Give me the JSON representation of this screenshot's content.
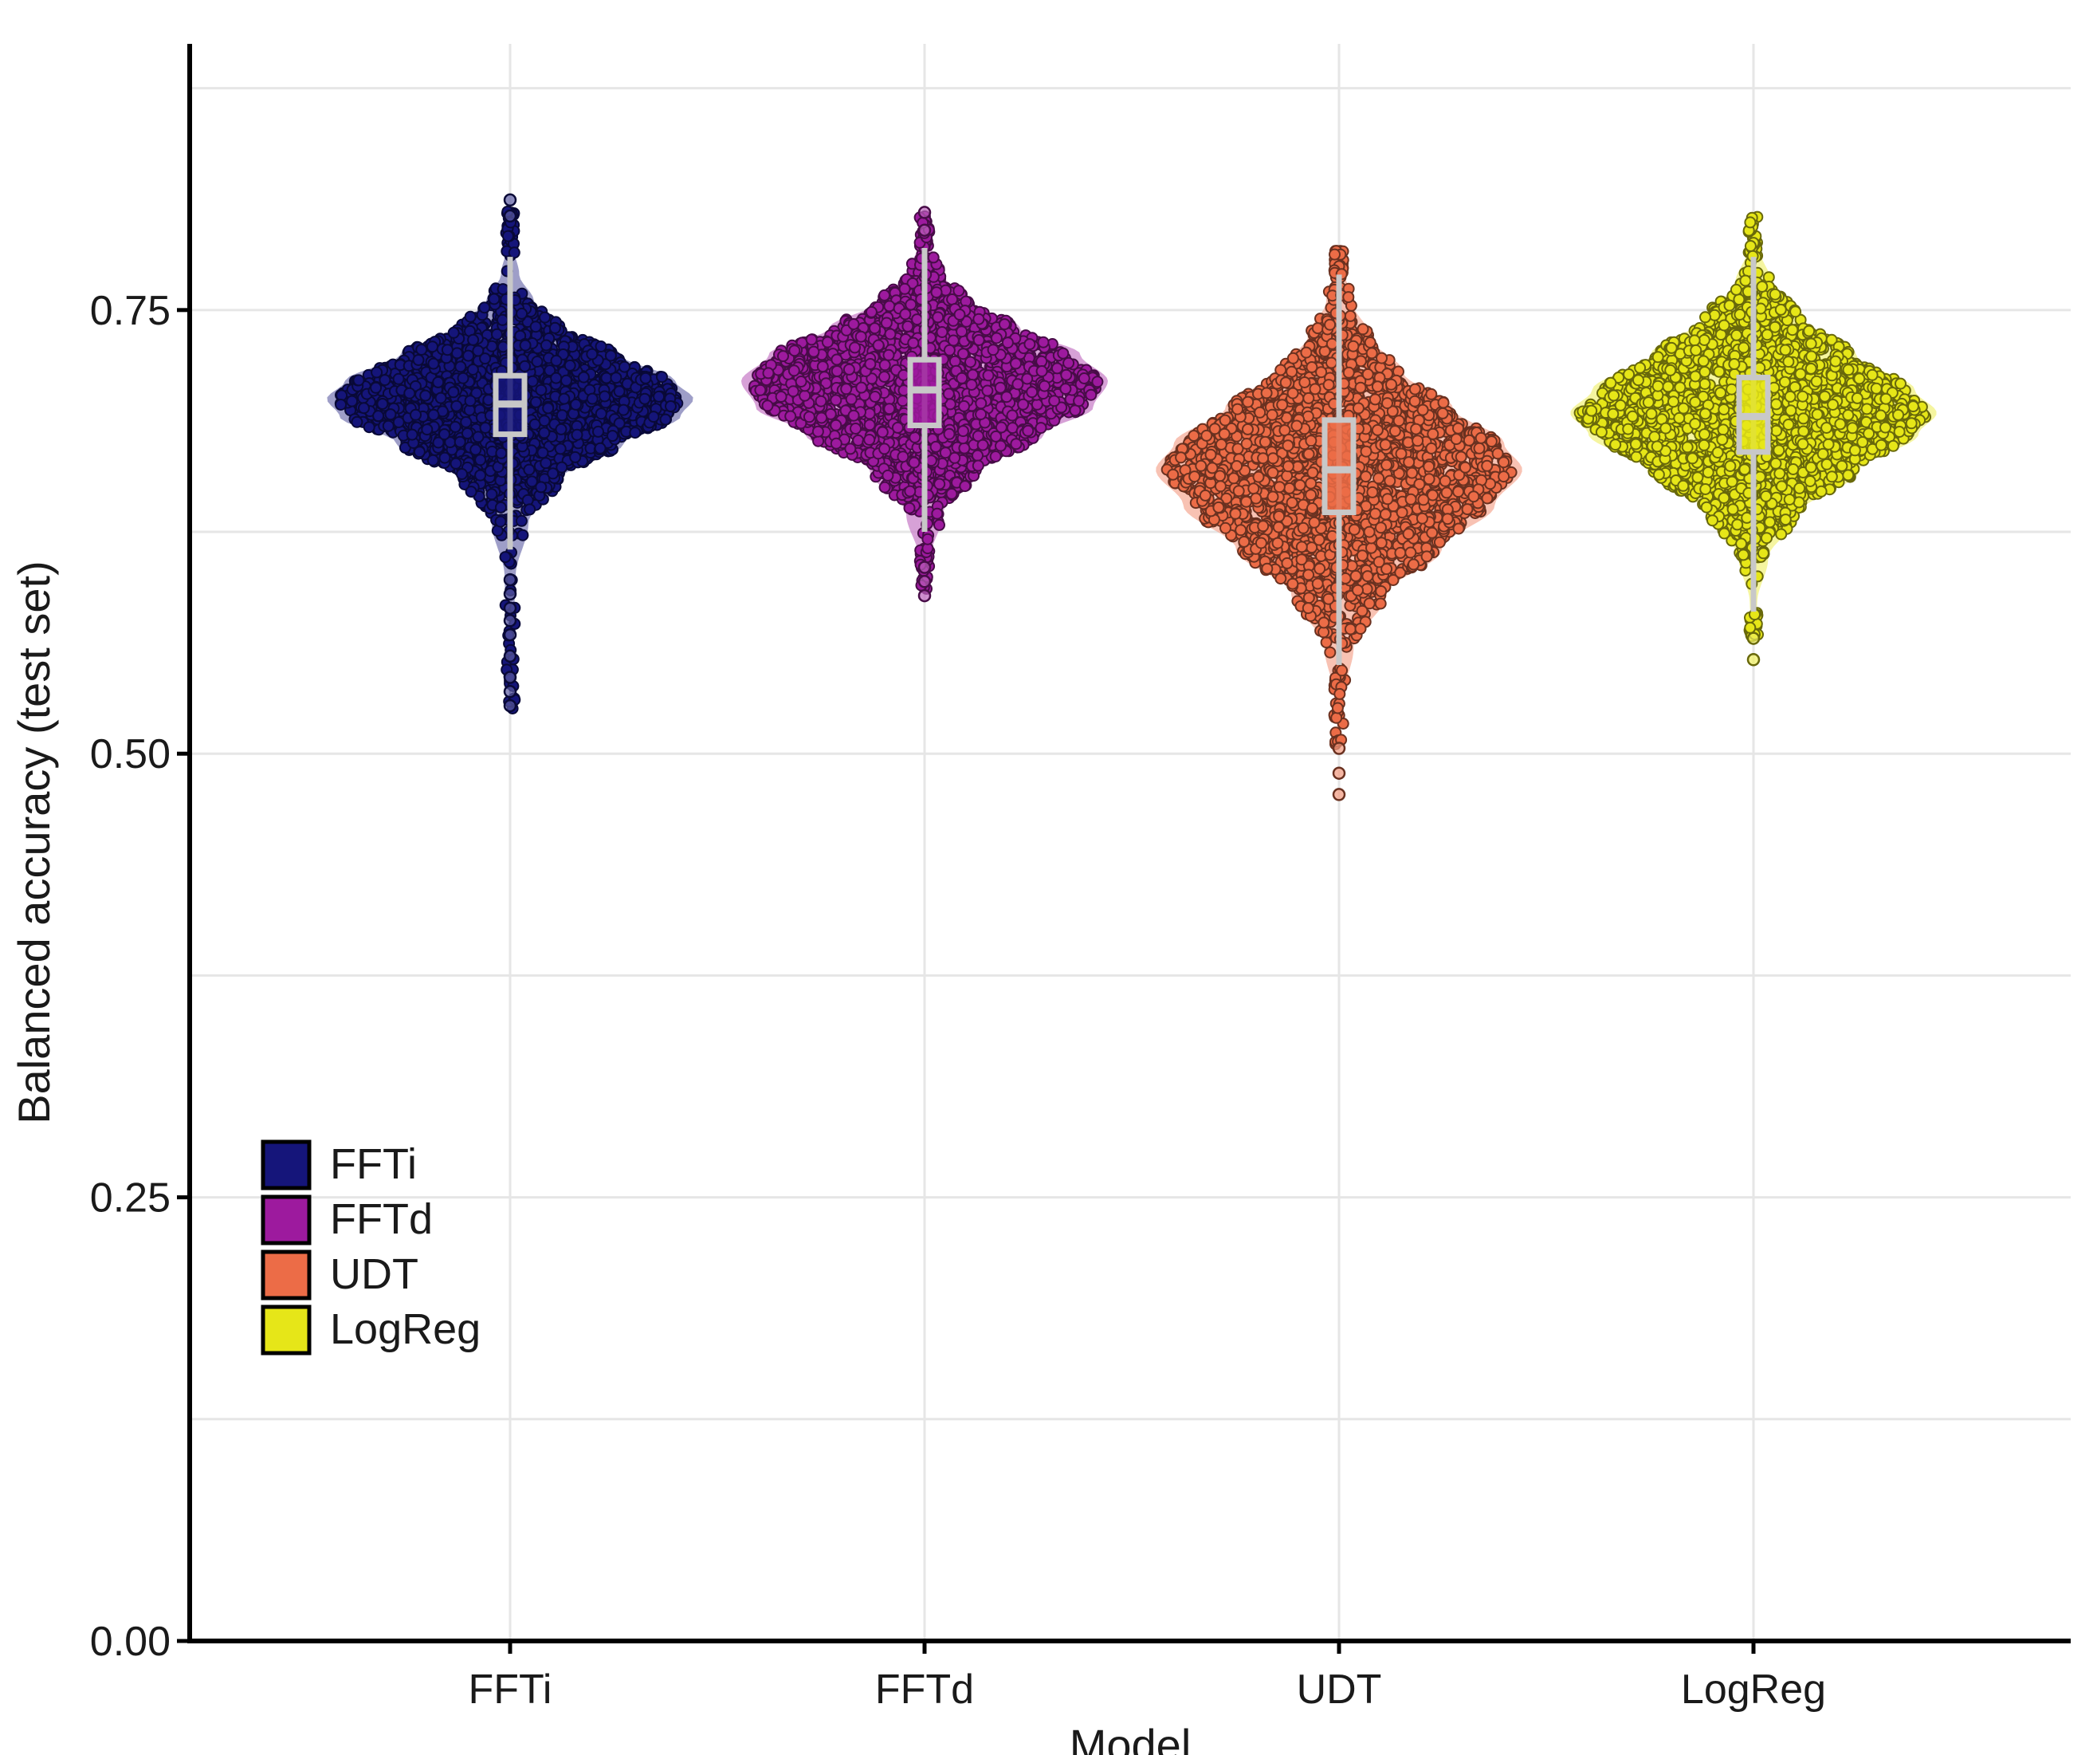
{
  "chart_data": {
    "type": "violin",
    "title": "",
    "xlabel": "Model",
    "ylabel": "Balanced accuracy (test set)",
    "ylim": [
      0,
      0.9
    ],
    "y_ticks": [
      0.0,
      0.25,
      0.5,
      0.75
    ],
    "y_tick_labels": [
      "0.00",
      "0.25",
      "0.50",
      "0.75"
    ],
    "categories": [
      "FFTi",
      "FFTd",
      "UDT",
      "LogReg"
    ],
    "series": [
      {
        "name": "FFTi",
        "color": "#15157a",
        "box": {
          "min": 0.615,
          "q1": 0.68,
          "median": 0.697,
          "q3": 0.713,
          "max": 0.78
        },
        "density": [
          [
            0.525,
            0.004
          ],
          [
            0.56,
            0.01
          ],
          [
            0.6,
            0.03
          ],
          [
            0.63,
            0.1
          ],
          [
            0.655,
            0.28
          ],
          [
            0.675,
            0.62
          ],
          [
            0.69,
            0.93
          ],
          [
            0.7,
            1.0
          ],
          [
            0.71,
            0.9
          ],
          [
            0.725,
            0.6
          ],
          [
            0.74,
            0.3
          ],
          [
            0.755,
            0.13
          ],
          [
            0.77,
            0.05
          ],
          [
            0.785,
            0.02
          ],
          [
            0.81,
            0.004
          ]
        ],
        "outliers": [
          0.527,
          0.535,
          0.543,
          0.555,
          0.567,
          0.575,
          0.582,
          0.59,
          0.598,
          0.803,
          0.812
        ]
      },
      {
        "name": "FFTd",
        "color": "#9d1a9e",
        "box": {
          "min": 0.625,
          "q1": 0.685,
          "median": 0.705,
          "q3": 0.722,
          "max": 0.785
        },
        "density": [
          [
            0.59,
            0.004
          ],
          [
            0.61,
            0.03
          ],
          [
            0.635,
            0.1
          ],
          [
            0.66,
            0.3
          ],
          [
            0.68,
            0.65
          ],
          [
            0.695,
            0.92
          ],
          [
            0.71,
            1.0
          ],
          [
            0.725,
            0.85
          ],
          [
            0.74,
            0.52
          ],
          [
            0.755,
            0.25
          ],
          [
            0.77,
            0.1
          ],
          [
            0.785,
            0.04
          ],
          [
            0.805,
            0.004
          ]
        ],
        "outliers": [
          0.589,
          0.597,
          0.605,
          0.795,
          0.805
        ]
      },
      {
        "name": "UDT",
        "color": "#ec6c47",
        "box": {
          "min": 0.55,
          "q1": 0.636,
          "median": 0.66,
          "q3": 0.688,
          "max": 0.77
        },
        "density": [
          [
            0.505,
            0.004
          ],
          [
            0.53,
            0.02
          ],
          [
            0.56,
            0.08
          ],
          [
            0.59,
            0.26
          ],
          [
            0.615,
            0.56
          ],
          [
            0.64,
            0.85
          ],
          [
            0.66,
            1.0
          ],
          [
            0.675,
            0.9
          ],
          [
            0.695,
            0.62
          ],
          [
            0.715,
            0.35
          ],
          [
            0.735,
            0.17
          ],
          [
            0.755,
            0.07
          ],
          [
            0.775,
            0.02
          ],
          [
            0.785,
            0.004
          ]
        ],
        "outliers": [
          0.477,
          0.489,
          0.503
        ]
      },
      {
        "name": "LogReg",
        "color": "#e6e618",
        "box": {
          "min": 0.58,
          "q1": 0.67,
          "median": 0.69,
          "q3": 0.712,
          "max": 0.78
        },
        "density": [
          [
            0.565,
            0.004
          ],
          [
            0.585,
            0.02
          ],
          [
            0.61,
            0.08
          ],
          [
            0.635,
            0.25
          ],
          [
            0.66,
            0.58
          ],
          [
            0.68,
            0.9
          ],
          [
            0.692,
            1.0
          ],
          [
            0.705,
            0.88
          ],
          [
            0.725,
            0.56
          ],
          [
            0.745,
            0.28
          ],
          [
            0.765,
            0.1
          ],
          [
            0.785,
            0.03
          ],
          [
            0.805,
            0.004
          ]
        ],
        "outliers": [
          0.553,
          0.565
        ]
      }
    ],
    "legend": {
      "placement": "bottom-left",
      "entries": [
        {
          "label": "FFTi",
          "color": "#15157a"
        },
        {
          "label": "FFTd",
          "color": "#9d1a9e"
        },
        {
          "label": "UDT",
          "color": "#ec6c47"
        },
        {
          "label": "LogReg",
          "color": "#e6e618"
        }
      ]
    },
    "grid": true
  }
}
